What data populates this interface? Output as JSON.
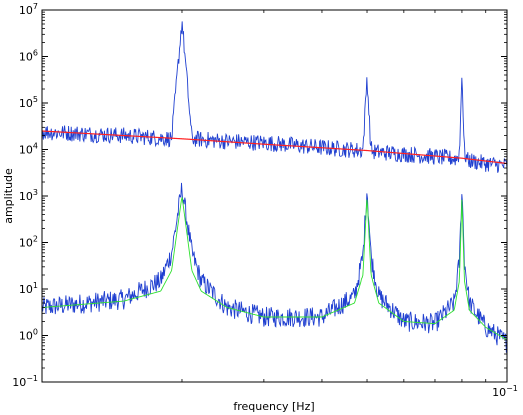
{
  "chart_data": {
    "type": "line",
    "title": "",
    "xlabel": "frequency [Hz]",
    "ylabel": "amplitude",
    "x_scale": "log",
    "y_scale": "log",
    "xlim": [
      0.01,
      0.1
    ],
    "ylim": [
      0.1,
      10000000
    ],
    "grid": false,
    "legend": "none",
    "y_ticks": [
      {
        "value": 0.1,
        "base": "10",
        "exp": "−1"
      },
      {
        "value": 1,
        "base": "10",
        "exp": "0"
      },
      {
        "value": 10,
        "base": "10",
        "exp": "1"
      },
      {
        "value": 100,
        "base": "10",
        "exp": "2"
      },
      {
        "value": 1000,
        "base": "10",
        "exp": "3"
      },
      {
        "value": 10000,
        "base": "10",
        "exp": "4"
      },
      {
        "value": 100000,
        "base": "10",
        "exp": "5"
      },
      {
        "value": 1000000,
        "base": "10",
        "exp": "6"
      },
      {
        "value": 10000000,
        "base": "10",
        "exp": "7"
      }
    ],
    "x_ticks": [
      {
        "value": 0.1,
        "base": "10",
        "exp": "−1"
      }
    ],
    "peaks_hz": [
      0.02,
      0.05,
      0.08
    ],
    "series": [
      {
        "color": "#1f3fd0",
        "x": [
          0.01,
          0.015,
          0.019,
          0.02,
          0.021,
          0.025,
          0.03,
          0.04,
          0.049,
          0.05,
          0.051,
          0.06,
          0.07,
          0.079,
          0.08,
          0.081,
          0.09,
          0.1
        ],
        "values": [
          24000,
          20000,
          17000,
          6000000,
          17000,
          15000,
          14000,
          11000,
          9500,
          380000,
          9000,
          8000,
          7000,
          6200,
          520000,
          6000,
          5000,
          4500
        ]
      },
      {
        "color": "#1f3fd0",
        "x": [
          0.01,
          0.015,
          0.018,
          0.019,
          0.02,
          0.021,
          0.022,
          0.025,
          0.03,
          0.04,
          0.047,
          0.049,
          0.05,
          0.051,
          0.053,
          0.06,
          0.07,
          0.077,
          0.079,
          0.08,
          0.081,
          0.083,
          0.09,
          0.1
        ],
        "values": [
          4,
          6,
          15,
          60,
          1500,
          60,
          15,
          4,
          2.5,
          2.5,
          7,
          50,
          1500,
          50,
          7,
          2,
          1.8,
          5,
          40,
          1500,
          40,
          5,
          1.5,
          0.7
        ]
      },
      {
        "color": "#2fe02f",
        "x": [
          0.01,
          0.015,
          0.018,
          0.019,
          0.02,
          0.021,
          0.022,
          0.025,
          0.03,
          0.04,
          0.047,
          0.049,
          0.05,
          0.051,
          0.053,
          0.06,
          0.07,
          0.077,
          0.079,
          0.08,
          0.081,
          0.083,
          0.09,
          0.1
        ],
        "values": [
          4,
          5.5,
          9,
          25,
          1000,
          25,
          9,
          4,
          2.5,
          2.5,
          5,
          20,
          1000,
          20,
          5,
          2,
          1.8,
          3.5,
          15,
          900,
          15,
          3.5,
          1.5,
          0.8
        ]
      },
      {
        "color": "#ff2020",
        "x": [
          0.01,
          0.02,
          0.03,
          0.05,
          0.08,
          0.1
        ],
        "values": [
          25000,
          17000,
          13000,
          9500,
          6500,
          5000
        ]
      }
    ]
  }
}
